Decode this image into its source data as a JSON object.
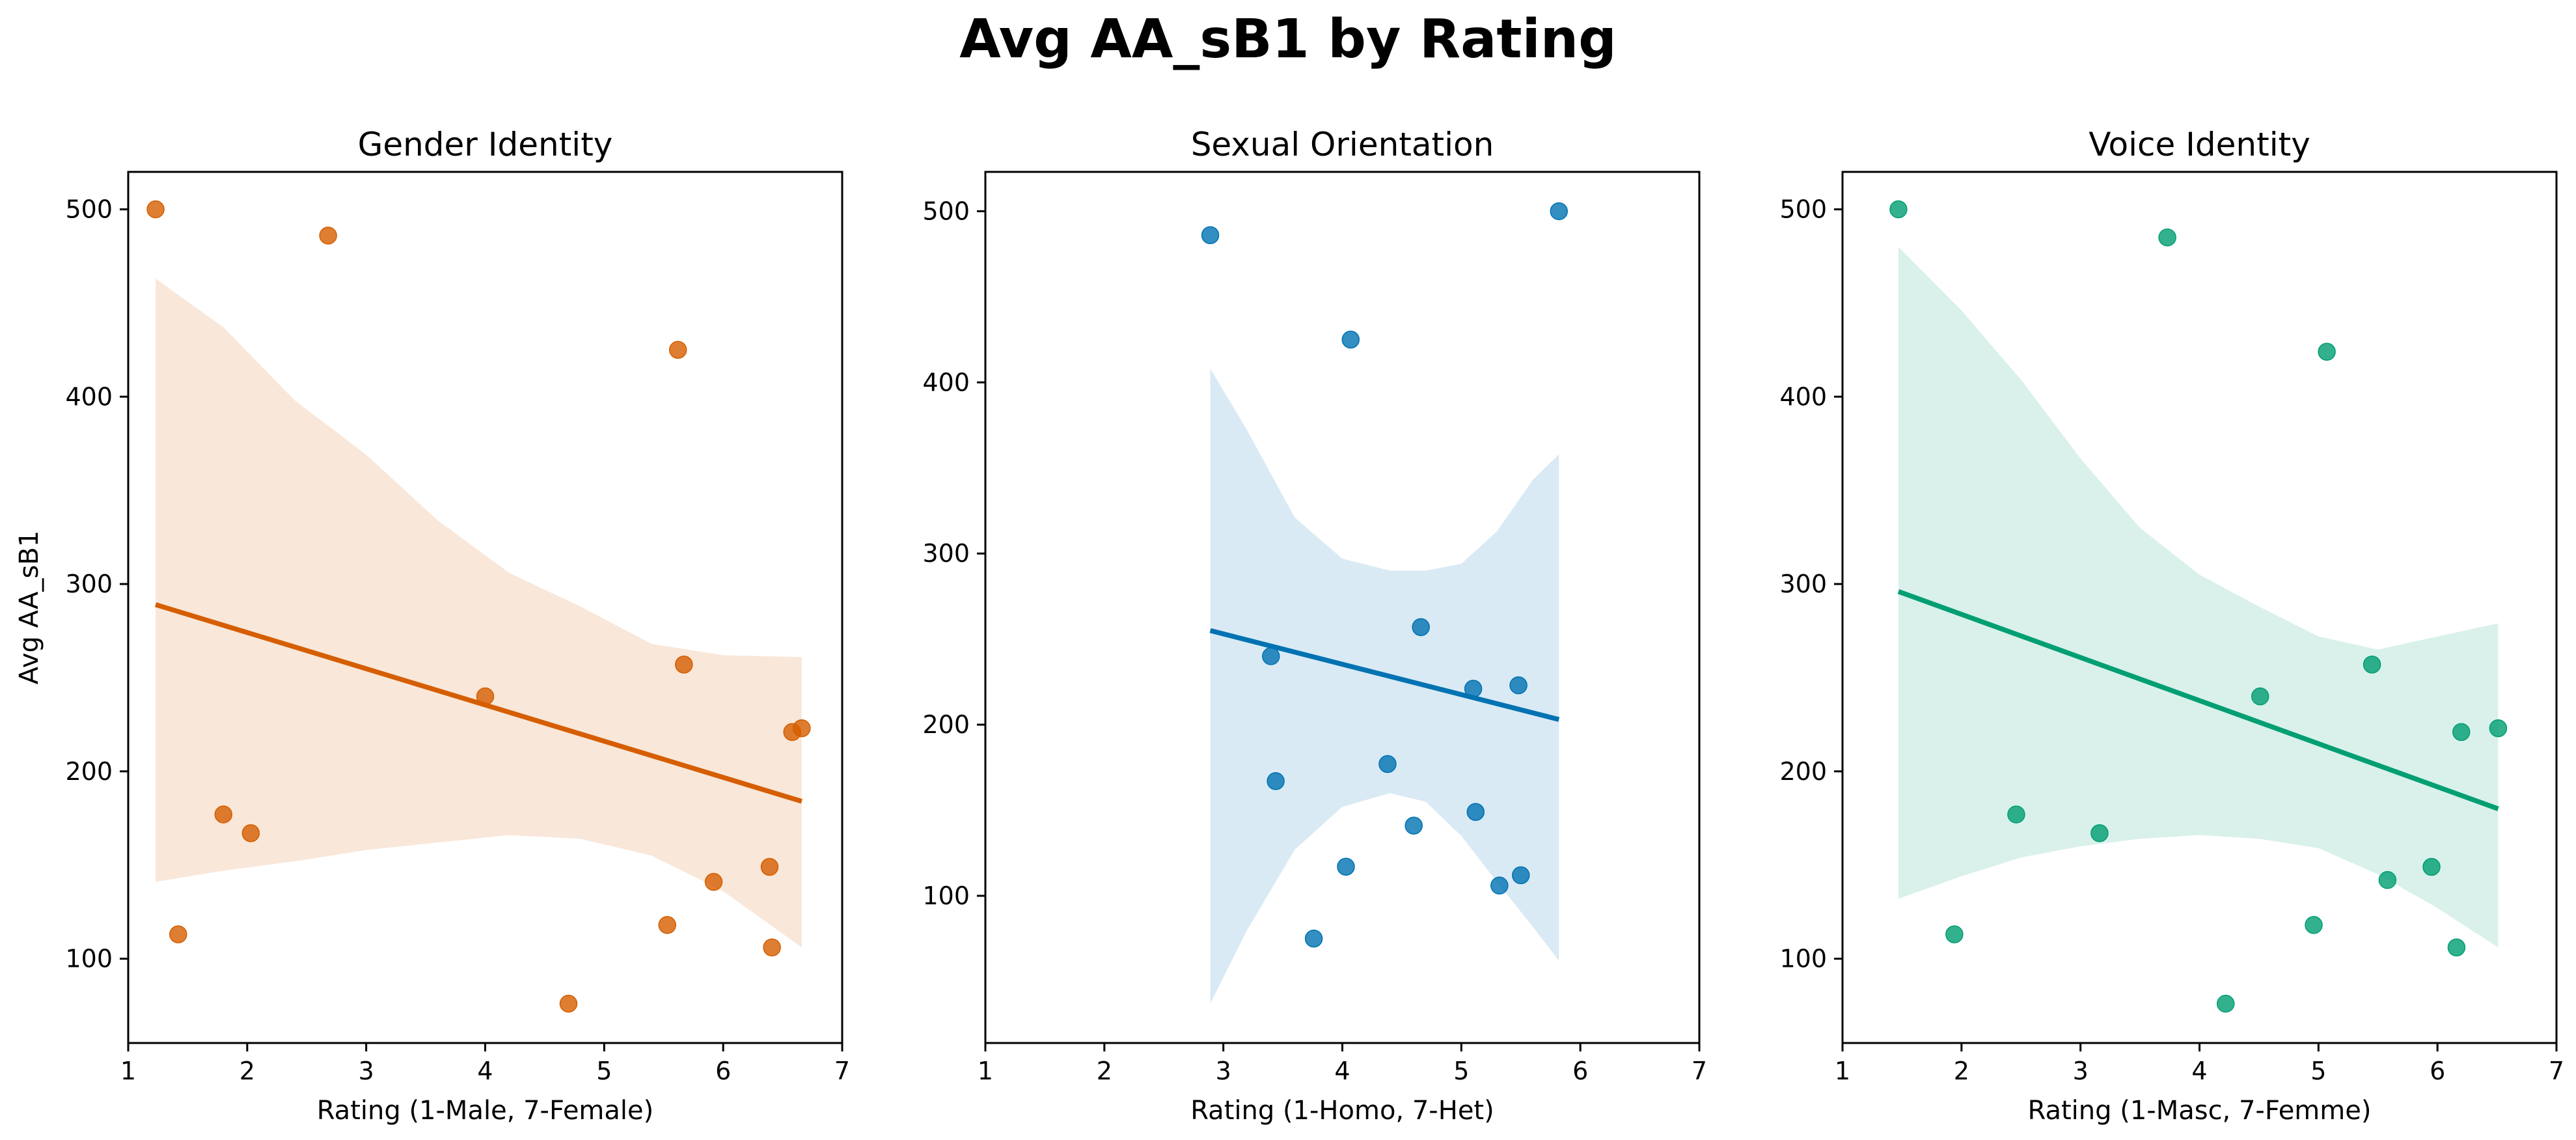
{
  "figure": {
    "title": "Avg AA_sB1 by Rating"
  },
  "chart_data": [
    {
      "type": "scatter",
      "title": "Gender Identity",
      "xlabel": "Rating (1-Male, 7-Female)",
      "ylabel": "Avg AA_sB1",
      "xlim": [
        1,
        7
      ],
      "ylim": [
        55,
        520
      ],
      "xticks": [
        1,
        2,
        3,
        4,
        5,
        6,
        7
      ],
      "yticks": [
        100,
        200,
        300,
        400,
        500
      ],
      "color": "#d55e00",
      "points": [
        [
          1.23,
          500
        ],
        [
          1.42,
          113
        ],
        [
          1.8,
          177
        ],
        [
          2.03,
          167
        ],
        [
          2.68,
          486
        ],
        [
          4.0,
          240
        ],
        [
          4.7,
          76
        ],
        [
          5.53,
          118
        ],
        [
          5.62,
          425
        ],
        [
          5.67,
          257
        ],
        [
          5.92,
          141
        ],
        [
          6.39,
          149
        ],
        [
          6.41,
          106
        ],
        [
          6.58,
          221
        ],
        [
          6.66,
          223
        ]
      ],
      "regression": {
        "x": [
          1.23,
          6.66
        ],
        "y": [
          289,
          184
        ]
      },
      "ci_band": {
        "x": [
          1.23,
          1.8,
          2.4,
          3.0,
          3.6,
          4.2,
          4.8,
          5.4,
          6.0,
          6.66
        ],
        "upper": [
          463,
          437,
          398,
          369,
          334,
          306,
          288,
          268,
          262,
          261
        ],
        "lower": [
          141,
          147,
          152,
          158,
          162,
          166,
          164,
          155,
          136,
          106
        ]
      }
    },
    {
      "type": "scatter",
      "title": "Sexual Orientation",
      "xlabel": "Rating (1-Homo, 7-Het)",
      "ylabel": "",
      "xlim": [
        1,
        7
      ],
      "ylim": [
        14,
        523
      ],
      "xticks": [
        1,
        2,
        3,
        4,
        5,
        6,
        7
      ],
      "yticks": [
        100,
        200,
        300,
        400,
        500
      ],
      "color": "#0072b2",
      "points": [
        [
          2.89,
          486
        ],
        [
          3.4,
          240
        ],
        [
          3.44,
          167
        ],
        [
          3.76,
          75
        ],
        [
          4.03,
          117
        ],
        [
          4.07,
          425
        ],
        [
          4.38,
          177
        ],
        [
          4.6,
          141
        ],
        [
          4.66,
          257
        ],
        [
          5.1,
          221
        ],
        [
          5.12,
          149
        ],
        [
          5.32,
          106
        ],
        [
          5.48,
          223
        ],
        [
          5.5,
          112
        ],
        [
          5.82,
          500
        ]
      ],
      "regression": {
        "x": [
          2.89,
          5.82
        ],
        "y": [
          255,
          203
        ]
      },
      "ci_band": {
        "x": [
          2.89,
          3.2,
          3.6,
          4.0,
          4.4,
          4.7,
          5.0,
          5.3,
          5.6,
          5.82
        ],
        "upper": [
          408,
          372,
          321,
          297,
          290,
          290,
          294,
          313,
          343,
          358
        ],
        "lower": [
          37,
          80,
          127,
          152,
          160,
          155,
          135,
          108,
          82,
          62
        ]
      }
    },
    {
      "type": "scatter",
      "title": "Voice Identity",
      "xlabel": "Rating (1-Masc, 7-Femme)",
      "ylabel": "",
      "xlim": [
        1,
        7
      ],
      "ylim": [
        55,
        520
      ],
      "xticks": [
        1,
        2,
        3,
        4,
        5,
        6,
        7
      ],
      "yticks": [
        100,
        200,
        300,
        400,
        500
      ],
      "color": "#009e73",
      "points": [
        [
          1.47,
          500
        ],
        [
          1.94,
          113
        ],
        [
          2.46,
          177
        ],
        [
          3.16,
          167
        ],
        [
          3.73,
          485
        ],
        [
          4.22,
          76
        ],
        [
          4.51,
          240
        ],
        [
          4.96,
          118
        ],
        [
          5.07,
          424
        ],
        [
          5.45,
          257
        ],
        [
          5.58,
          142
        ],
        [
          5.95,
          149
        ],
        [
          6.16,
          106
        ],
        [
          6.2,
          221
        ],
        [
          6.51,
          223
        ]
      ],
      "regression": {
        "x": [
          1.47,
          6.51
        ],
        "y": [
          296,
          180
        ]
      },
      "ci_band": {
        "x": [
          1.47,
          2.0,
          2.5,
          3.0,
          3.5,
          4.0,
          4.5,
          5.0,
          5.5,
          6.0,
          6.51
        ],
        "upper": [
          480,
          446,
          409,
          367,
          330,
          305,
          288,
          272,
          265,
          272,
          279
        ],
        "lower": [
          132,
          144,
          154,
          160,
          164,
          166,
          164,
          159,
          145,
          127,
          106
        ]
      }
    }
  ]
}
